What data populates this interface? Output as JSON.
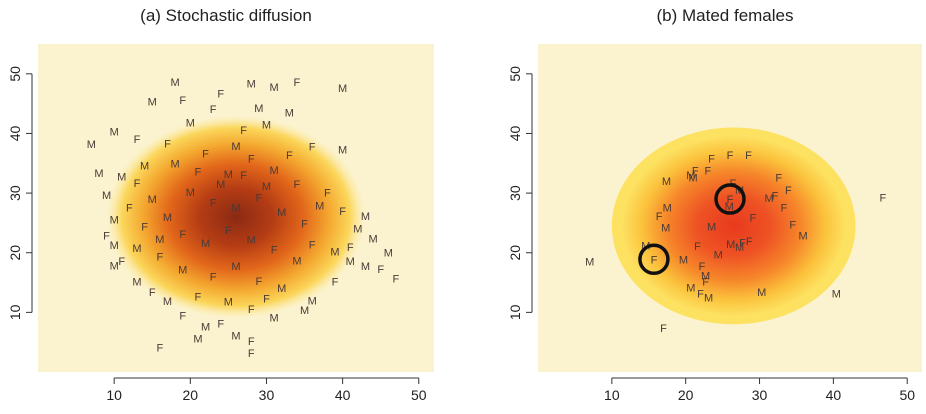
{
  "panels": [
    {
      "id": "a",
      "title": "(a) Stochastic diffusion",
      "xticks": [
        10,
        20,
        30,
        40,
        50
      ],
      "yticks": [
        10,
        20,
        30,
        40,
        50
      ],
      "xlim": [
        0,
        52
      ],
      "ylim": [
        0,
        55
      ],
      "heat_center": [
        26,
        26
      ],
      "heat_radius": 17,
      "individuals": [
        {
          "sex": "M",
          "x": 18,
          "y": 48.6
        },
        {
          "sex": "F",
          "x": 24,
          "y": 46.7
        },
        {
          "sex": "M",
          "x": 28,
          "y": 48.4
        },
        {
          "sex": "M",
          "x": 31,
          "y": 47.8
        },
        {
          "sex": "F",
          "x": 34,
          "y": 48.6
        },
        {
          "sex": "M",
          "x": 40,
          "y": 47.6
        },
        {
          "sex": "M",
          "x": 15,
          "y": 45.4
        },
        {
          "sex": "F",
          "x": 19,
          "y": 45.6
        },
        {
          "sex": "F",
          "x": 23,
          "y": 44.1
        },
        {
          "sex": "M",
          "x": 29,
          "y": 44.3
        },
        {
          "sex": "M",
          "x": 33,
          "y": 43.5
        },
        {
          "sex": "M",
          "x": 10,
          "y": 40.3
        },
        {
          "sex": "M",
          "x": 7,
          "y": 38.2
        },
        {
          "sex": "F",
          "x": 13,
          "y": 39.1
        },
        {
          "sex": "M",
          "x": 20,
          "y": 41.8
        },
        {
          "sex": "F",
          "x": 27,
          "y": 40.6
        },
        {
          "sex": "M",
          "x": 30,
          "y": 41.5
        },
        {
          "sex": "F",
          "x": 36,
          "y": 37.8
        },
        {
          "sex": "M",
          "x": 40,
          "y": 37.3
        },
        {
          "sex": "M",
          "x": 8,
          "y": 33.4
        },
        {
          "sex": "M",
          "x": 11,
          "y": 32.8
        },
        {
          "sex": "F",
          "x": 13,
          "y": 31.7
        },
        {
          "sex": "M",
          "x": 9,
          "y": 29.7
        },
        {
          "sex": "F",
          "x": 12,
          "y": 27.6
        },
        {
          "sex": "M",
          "x": 10,
          "y": 25.6
        },
        {
          "sex": "F",
          "x": 9,
          "y": 22.9
        },
        {
          "sex": "M",
          "x": 10,
          "y": 21.3
        },
        {
          "sex": "M",
          "x": 13,
          "y": 20.8
        },
        {
          "sex": "F",
          "x": 11,
          "y": 18.6
        },
        {
          "sex": "M",
          "x": 10,
          "y": 17.9
        },
        {
          "sex": "M",
          "x": 13,
          "y": 15.2
        },
        {
          "sex": "F",
          "x": 15,
          "y": 13.4
        },
        {
          "sex": "M",
          "x": 17,
          "y": 11.9
        },
        {
          "sex": "F",
          "x": 19,
          "y": 9.5
        },
        {
          "sex": "M",
          "x": 22,
          "y": 7.6
        },
        {
          "sex": "F",
          "x": 24,
          "y": 8.1
        },
        {
          "sex": "M",
          "x": 21,
          "y": 5.6
        },
        {
          "sex": "M",
          "x": 26,
          "y": 6.1
        },
        {
          "sex": "F",
          "x": 28,
          "y": 5.2
        },
        {
          "sex": "F",
          "x": 16,
          "y": 4.1
        },
        {
          "sex": "F",
          "x": 28,
          "y": 3.2
        },
        {
          "sex": "M",
          "x": 35,
          "y": 10.4
        },
        {
          "sex": "M",
          "x": 36,
          "y": 12.0
        },
        {
          "sex": "F",
          "x": 39,
          "y": 15.2
        },
        {
          "sex": "M",
          "x": 41,
          "y": 18.6
        },
        {
          "sex": "M",
          "x": 43,
          "y": 17.8
        },
        {
          "sex": "F",
          "x": 45,
          "y": 17.3
        },
        {
          "sex": "M",
          "x": 46,
          "y": 20.0
        },
        {
          "sex": "F",
          "x": 47,
          "y": 15.7
        },
        {
          "sex": "M",
          "x": 44,
          "y": 22.4
        },
        {
          "sex": "M",
          "x": 42,
          "y": 24.1
        },
        {
          "sex": "F",
          "x": 40,
          "y": 27.0
        },
        {
          "sex": "M",
          "x": 43,
          "y": 26.2
        },
        {
          "sex": "F",
          "x": 38,
          "y": 30.1
        },
        {
          "sex": "M",
          "x": 39,
          "y": 20.2
        },
        {
          "sex": "F",
          "x": 41,
          "y": 21.0
        },
        {
          "sex": "M",
          "x": 18,
          "y": 35.0
        },
        {
          "sex": "F",
          "x": 22,
          "y": 36.6
        },
        {
          "sex": "M",
          "x": 25,
          "y": 33.2
        },
        {
          "sex": "F",
          "x": 28,
          "y": 35.8
        },
        {
          "sex": "M",
          "x": 31,
          "y": 33.9
        },
        {
          "sex": "F",
          "x": 34,
          "y": 31.5
        },
        {
          "sex": "M",
          "x": 20,
          "y": 30.2
        },
        {
          "sex": "F",
          "x": 23,
          "y": 28.4
        },
        {
          "sex": "M",
          "x": 26,
          "y": 27.6
        },
        {
          "sex": "F",
          "x": 29,
          "y": 29.3
        },
        {
          "sex": "M",
          "x": 32,
          "y": 26.8
        },
        {
          "sex": "F",
          "x": 35,
          "y": 24.9
        },
        {
          "sex": "M",
          "x": 17,
          "y": 26.0
        },
        {
          "sex": "F",
          "x": 19,
          "y": 23.1
        },
        {
          "sex": "M",
          "x": 22,
          "y": 21.6
        },
        {
          "sex": "F",
          "x": 25,
          "y": 23.8
        },
        {
          "sex": "M",
          "x": 28,
          "y": 22.2
        },
        {
          "sex": "F",
          "x": 31,
          "y": 20.5
        },
        {
          "sex": "M",
          "x": 34,
          "y": 18.7
        },
        {
          "sex": "F",
          "x": 16,
          "y": 19.4
        },
        {
          "sex": "M",
          "x": 19,
          "y": 17.2
        },
        {
          "sex": "F",
          "x": 23,
          "y": 16.0
        },
        {
          "sex": "M",
          "x": 26,
          "y": 17.8
        },
        {
          "sex": "F",
          "x": 29,
          "y": 15.3
        },
        {
          "sex": "M",
          "x": 32,
          "y": 14.1
        },
        {
          "sex": "F",
          "x": 21,
          "y": 12.7
        },
        {
          "sex": "M",
          "x": 25,
          "y": 11.8
        },
        {
          "sex": "F",
          "x": 28,
          "y": 10.6
        },
        {
          "sex": "M",
          "x": 31,
          "y": 9.1
        },
        {
          "sex": "F",
          "x": 30,
          "y": 12.3
        },
        {
          "sex": "M",
          "x": 24,
          "y": 31.5
        },
        {
          "sex": "F",
          "x": 27,
          "y": 33.0
        },
        {
          "sex": "M",
          "x": 30,
          "y": 31.2
        },
        {
          "sex": "F",
          "x": 21,
          "y": 33.6
        },
        {
          "sex": "M",
          "x": 15,
          "y": 29.0
        },
        {
          "sex": "F",
          "x": 14,
          "y": 24.4
        },
        {
          "sex": "M",
          "x": 16,
          "y": 22.3
        },
        {
          "sex": "F",
          "x": 36,
          "y": 21.4
        },
        {
          "sex": "M",
          "x": 37,
          "y": 27.9
        },
        {
          "sex": "F",
          "x": 33,
          "y": 36.4
        },
        {
          "sex": "M",
          "x": 26,
          "y": 37.9
        },
        {
          "sex": "F",
          "x": 17,
          "y": 38.3
        },
        {
          "sex": "M",
          "x": 14,
          "y": 34.6
        }
      ]
    },
    {
      "id": "b",
      "title": "(b) Mated females",
      "xticks": [
        10,
        20,
        30,
        40,
        50
      ],
      "yticks": [
        10,
        20,
        30,
        40,
        50
      ],
      "xlim": [
        0,
        52
      ],
      "ylim": [
        0,
        55
      ],
      "heat_center": [
        26.5,
        24.5
      ],
      "heat_radius": 16.5,
      "individuals": [
        {
          "sex": "F",
          "x": 23.5,
          "y": 35.8
        },
        {
          "sex": "F",
          "x": 26,
          "y": 36.4
        },
        {
          "sex": "F",
          "x": 28.5,
          "y": 36.4
        },
        {
          "sex": "F",
          "x": 21.3,
          "y": 33.8
        },
        {
          "sex": "F",
          "x": 23,
          "y": 33.8
        },
        {
          "sex": "M",
          "x": 17.4,
          "y": 32.0
        },
        {
          "sex": "M",
          "x": 20.7,
          "y": 33.0
        },
        {
          "sex": "M",
          "x": 21.0,
          "y": 32.6
        },
        {
          "sex": "F",
          "x": 26.4,
          "y": 31.7
        },
        {
          "sex": "F",
          "x": 32.6,
          "y": 32.6
        },
        {
          "sex": "M",
          "x": 27.3,
          "y": 30.5
        },
        {
          "sex": "F",
          "x": 33.9,
          "y": 30.5
        },
        {
          "sex": "M",
          "x": 31.3,
          "y": 29.2
        },
        {
          "sex": "F",
          "x": 32.1,
          "y": 29.6
        },
        {
          "sex": "F",
          "x": 46.7,
          "y": 29.3
        },
        {
          "sex": "M",
          "x": 17.5,
          "y": 27.6
        },
        {
          "sex": "M",
          "x": 25.9,
          "y": 27.8
        },
        {
          "sex": "F",
          "x": 33.3,
          "y": 27.6
        },
        {
          "sex": "F",
          "x": 16.4,
          "y": 26.2
        },
        {
          "sex": "F",
          "x": 29.1,
          "y": 25.9
        },
        {
          "sex": "F",
          "x": 34.5,
          "y": 24.7
        },
        {
          "sex": "M",
          "x": 17.3,
          "y": 24.2
        },
        {
          "sex": "M",
          "x": 23.5,
          "y": 24.4
        },
        {
          "sex": "M",
          "x": 35.9,
          "y": 22.9
        },
        {
          "sex": "M",
          "x": 26.1,
          "y": 21.5
        },
        {
          "sex": "F",
          "x": 21.6,
          "y": 21.1
        },
        {
          "sex": "M",
          "x": 14.6,
          "y": 21.2
        },
        {
          "sex": "M",
          "x": 27.3,
          "y": 21.0
        },
        {
          "sex": "F",
          "x": 28.6,
          "y": 22.0
        },
        {
          "sex": "F",
          "x": 27.7,
          "y": 21.7
        },
        {
          "sex": "M",
          "x": 24.4,
          "y": 19.7
        },
        {
          "sex": "M",
          "x": 19.7,
          "y": 18.9
        },
        {
          "sex": "M",
          "x": 7.0,
          "y": 18.5
        },
        {
          "sex": "F",
          "x": 22.2,
          "y": 17.8
        },
        {
          "sex": "M",
          "x": 22.7,
          "y": 16.2
        },
        {
          "sex": "F",
          "x": 22.7,
          "y": 15.2
        },
        {
          "sex": "M",
          "x": 20.7,
          "y": 14.2
        },
        {
          "sex": "F",
          "x": 22.0,
          "y": 13.2
        },
        {
          "sex": "M",
          "x": 23.1,
          "y": 12.5
        },
        {
          "sex": "M",
          "x": 30.3,
          "y": 13.4
        },
        {
          "sex": "M",
          "x": 40.4,
          "y": 13.2
        },
        {
          "sex": "F",
          "x": 17.0,
          "y": 7.4
        },
        {
          "sex": "F",
          "x": 15.7,
          "y": 18.9
        },
        {
          "sex": "F",
          "x": 26.0,
          "y": 29.0
        }
      ],
      "highlights": [
        {
          "x": 15.7,
          "y": 18.9
        },
        {
          "x": 26.0,
          "y": 29.0
        }
      ]
    }
  ]
}
